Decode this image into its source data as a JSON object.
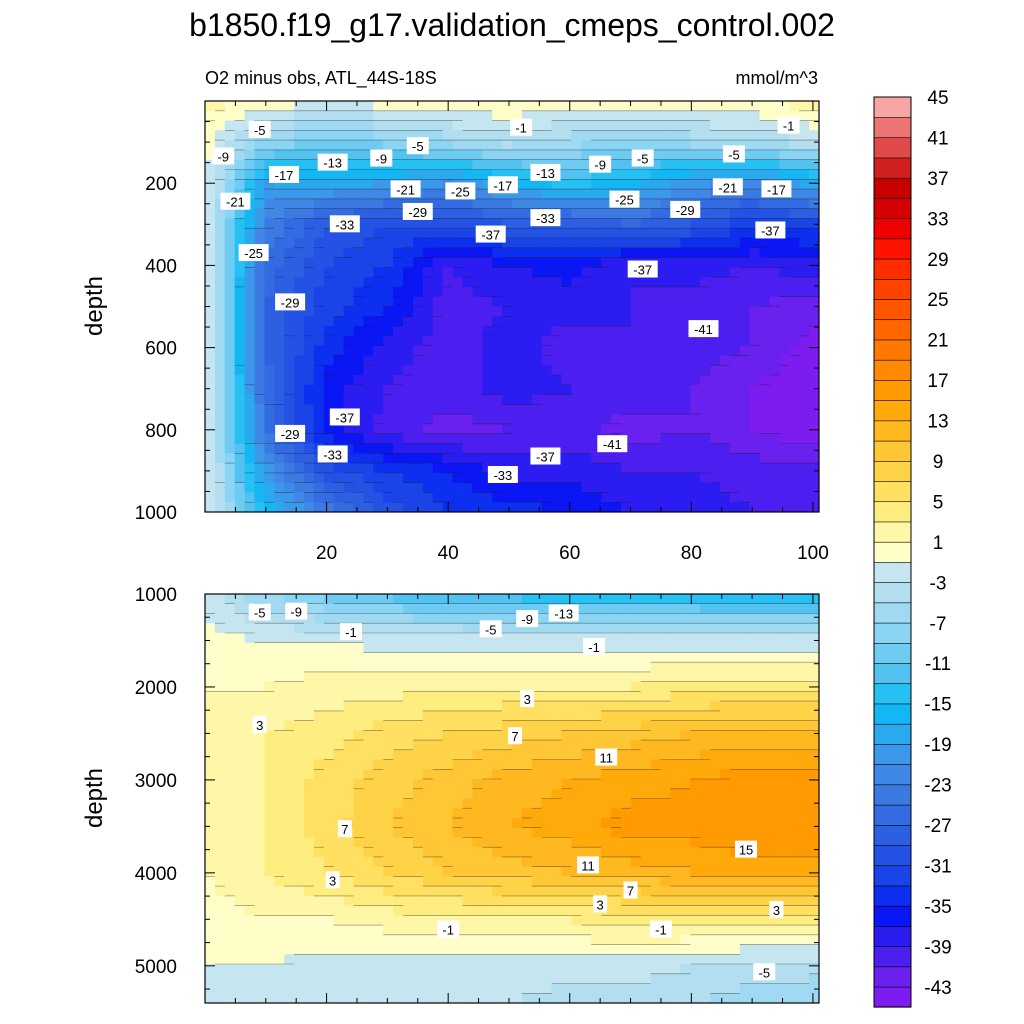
{
  "title": "b1850.f19_g17.validation_cmeps_control.002",
  "subtitle_left": "O2 minus obs, ATL_44S-18S",
  "subtitle_right": "mmol/m^3",
  "colors": {
    "background": "#ffffff",
    "axis": "#000000",
    "contour_line": "#1a1a1a",
    "label_box": "#ffffff"
  },
  "chart_data": [
    {
      "type": "heatmap",
      "panel": "top",
      "x": [
        0,
        10,
        20,
        30,
        40,
        50,
        60,
        70,
        80,
        90,
        100
      ],
      "y": [
        0,
        100,
        200,
        300,
        400,
        500,
        600,
        700,
        800,
        900,
        1000
      ],
      "values": [
        [
          2,
          0,
          0,
          0,
          1,
          1,
          0,
          0,
          1,
          1,
          2
        ],
        [
          0,
          -7,
          -10,
          -8,
          -6,
          -4,
          -6,
          -8,
          -6,
          -5,
          -3
        ],
        [
          0,
          -19,
          -18,
          -19,
          -21,
          -17,
          -14,
          -16,
          -20,
          -22,
          -18
        ],
        [
          0,
          -23,
          -29,
          -31,
          -31,
          -29,
          -29,
          -27,
          -29,
          -33,
          -32
        ],
        [
          0,
          -26,
          -31,
          -33,
          -39,
          -37,
          -36,
          -39,
          -38,
          -39,
          -38
        ],
        [
          0,
          -27,
          -32,
          -35,
          -40,
          -39,
          -38,
          -39,
          -40,
          -41,
          -42
        ],
        [
          0,
          -27,
          -34,
          -38,
          -40,
          -38,
          -40,
          -39,
          -40,
          -41,
          -44
        ],
        [
          0,
          -26,
          -36,
          -39,
          -40,
          -38,
          -39,
          -40,
          -41,
          -43,
          -45
        ],
        [
          0,
          -25,
          -36,
          -40,
          -42,
          -41,
          -40,
          -42,
          -41,
          -43,
          -45
        ],
        [
          0,
          -20,
          -30,
          -33,
          -35,
          -38,
          -38,
          -39,
          -39,
          -40,
          -40
        ],
        [
          0,
          -16,
          -24,
          -30,
          -33,
          -34,
          -35,
          -37,
          -38,
          -39,
          -39
        ]
      ],
      "xlim": [
        0,
        101
      ],
      "ylim": [
        1000,
        0
      ],
      "x_ticks": [
        "20",
        "40",
        "60",
        "80",
        "100"
      ],
      "y_ticks": [
        "200",
        "400",
        "600",
        "800",
        "1000"
      ],
      "xlabel": "",
      "ylabel": "depth",
      "contour_labels": [
        {
          "text": "-5",
          "x": 9,
          "y": 70
        },
        {
          "text": "-1",
          "x": 52,
          "y": 65
        },
        {
          "text": "-1",
          "x": 96,
          "y": 60
        },
        {
          "text": "-9",
          "x": 3,
          "y": 135
        },
        {
          "text": "-5",
          "x": 35,
          "y": 110
        },
        {
          "text": "-9",
          "x": 29,
          "y": 140
        },
        {
          "text": "-13",
          "x": 21,
          "y": 150
        },
        {
          "text": "-17",
          "x": 13,
          "y": 180
        },
        {
          "text": "-13",
          "x": 56,
          "y": 175
        },
        {
          "text": "-9",
          "x": 65,
          "y": 155
        },
        {
          "text": "-5",
          "x": 72,
          "y": 140
        },
        {
          "text": "-5",
          "x": 87,
          "y": 130
        },
        {
          "text": "-21",
          "x": 33,
          "y": 215
        },
        {
          "text": "-25",
          "x": 42,
          "y": 220
        },
        {
          "text": "-17",
          "x": 49,
          "y": 205
        },
        {
          "text": "-21",
          "x": 86,
          "y": 210
        },
        {
          "text": "-17",
          "x": 94,
          "y": 215
        },
        {
          "text": "-25",
          "x": 69,
          "y": 240
        },
        {
          "text": "-29",
          "x": 79,
          "y": 265
        },
        {
          "text": "-21",
          "x": 5,
          "y": 245
        },
        {
          "text": "-29",
          "x": 35,
          "y": 270
        },
        {
          "text": "-33",
          "x": 23,
          "y": 300
        },
        {
          "text": "-37",
          "x": 47,
          "y": 325
        },
        {
          "text": "-33",
          "x": 56,
          "y": 285
        },
        {
          "text": "-37",
          "x": 93,
          "y": 315
        },
        {
          "text": "-37",
          "x": 72,
          "y": 410
        },
        {
          "text": "-25",
          "x": 8,
          "y": 370
        },
        {
          "text": "-29",
          "x": 14,
          "y": 490
        },
        {
          "text": "-41",
          "x": 82,
          "y": 555
        },
        {
          "text": "-37",
          "x": 23,
          "y": 770
        },
        {
          "text": "-29",
          "x": 14,
          "y": 810
        },
        {
          "text": "-33",
          "x": 21,
          "y": 860
        },
        {
          "text": "-37",
          "x": 56,
          "y": 865
        },
        {
          "text": "-41",
          "x": 67,
          "y": 835
        },
        {
          "text": "-33",
          "x": 49,
          "y": 910
        }
      ]
    },
    {
      "type": "heatmap",
      "panel": "bottom",
      "x": [
        0,
        10,
        20,
        30,
        40,
        50,
        60,
        70,
        80,
        90,
        100
      ],
      "y": [
        1000,
        1500,
        2000,
        2500,
        3000,
        3500,
        4000,
        4500,
        5000,
        5400
      ],
      "values": [
        [
          -2,
          -7,
          -10,
          -12,
          -13,
          -14,
          -15,
          -15,
          -15,
          -16,
          -16
        ],
        [
          0,
          -1,
          -1,
          -2,
          -2,
          -2,
          -2,
          -2,
          -2,
          -2,
          -2
        ],
        [
          1,
          1,
          2,
          2,
          3,
          3,
          3,
          3,
          4,
          4,
          4
        ],
        [
          1,
          3,
          4,
          6,
          7,
          8,
          9,
          10,
          11,
          12,
          12
        ],
        [
          1,
          3,
          6,
          8,
          10,
          12,
          13,
          14,
          15,
          16,
          16
        ],
        [
          1,
          3,
          6,
          9,
          11,
          13,
          14,
          16,
          16,
          17,
          17
        ],
        [
          1,
          3,
          5,
          7,
          9,
          10,
          11,
          12,
          13,
          14,
          14
        ],
        [
          0,
          1,
          1,
          2,
          2,
          3,
          3,
          4,
          4,
          4,
          4
        ],
        [
          -1,
          -1,
          -2,
          -2,
          -2,
          -2,
          -2,
          -2,
          -3,
          -4,
          -4
        ],
        [
          -1,
          -2,
          -2,
          -2,
          -3,
          -3,
          -4,
          -4,
          -5,
          -6,
          -7
        ]
      ],
      "xlim": [
        0,
        101
      ],
      "ylim": [
        5400,
        1000
      ],
      "x_ticks": [
        "20",
        "40",
        "60",
        "80",
        "100"
      ],
      "y_ticks": [
        "1000",
        "2000",
        "3000",
        "4000",
        "5000"
      ],
      "xlabel": "",
      "ylabel": "depth",
      "contour_labels": [
        {
          "text": "-5",
          "x": 9,
          "y": 1200
        },
        {
          "text": "-9",
          "x": 15,
          "y": 1190
        },
        {
          "text": "-1",
          "x": 24,
          "y": 1410
        },
        {
          "text": "-5",
          "x": 47,
          "y": 1380
        },
        {
          "text": "-9",
          "x": 53,
          "y": 1270
        },
        {
          "text": "-13",
          "x": 59,
          "y": 1210
        },
        {
          "text": "-1",
          "x": 64,
          "y": 1570
        },
        {
          "text": "3",
          "x": 9,
          "y": 2410
        },
        {
          "text": "3",
          "x": 53,
          "y": 2130
        },
        {
          "text": "7",
          "x": 51,
          "y": 2530
        },
        {
          "text": "11",
          "x": 66,
          "y": 2760
        },
        {
          "text": "7",
          "x": 23,
          "y": 3530
        },
        {
          "text": "15",
          "x": 89,
          "y": 3750
        },
        {
          "text": "11",
          "x": 63,
          "y": 3920
        },
        {
          "text": "3",
          "x": 21,
          "y": 4080
        },
        {
          "text": "7",
          "x": 70,
          "y": 4190
        },
        {
          "text": "3",
          "x": 65,
          "y": 4340
        },
        {
          "text": "3",
          "x": 94,
          "y": 4400
        },
        {
          "text": "-1",
          "x": 40,
          "y": 4610
        },
        {
          "text": "-1",
          "x": 75,
          "y": 4610
        },
        {
          "text": "-5",
          "x": 92,
          "y": 5070
        }
      ]
    }
  ],
  "colorbar": {
    "labels": [
      "45",
      "41",
      "37",
      "33",
      "29",
      "25",
      "21",
      "17",
      "13",
      "9",
      "5",
      "1",
      "-3",
      "-7",
      "-11",
      "-15",
      "-19",
      "-23",
      "-27",
      "-31",
      "-35",
      "-39",
      "-43"
    ],
    "levels": [
      -45,
      -43,
      -41,
      -39,
      -37,
      -35,
      -33,
      -31,
      -29,
      -27,
      -25,
      -23,
      -21,
      -19,
      -17,
      -15,
      -13,
      -11,
      -9,
      -7,
      -5,
      -3,
      -1,
      1,
      3,
      5,
      7,
      9,
      11,
      13,
      15,
      17,
      19,
      21,
      23,
      25,
      27,
      29,
      31,
      33,
      35,
      37,
      39,
      41,
      43,
      45
    ],
    "colors_bottom_to_top": [
      "#7c1cf0",
      "#6a20ee",
      "#4c1ff0",
      "#2b1df2",
      "#0a16f4",
      "#0c2ff0",
      "#1a44e8",
      "#2452e4",
      "#2c5fe2",
      "#336ce2",
      "#3b7ae3",
      "#3f88e5",
      "#3c98ea",
      "#2aa9ef",
      "#13b7f3",
      "#26c0f3",
      "#52c3f1",
      "#6ecbf2",
      "#8ad4f4",
      "#a0d9f2",
      "#b3def0",
      "#c5e6f0",
      "#fffdc8",
      "#fff7a8",
      "#ffed80",
      "#ffe060",
      "#ffd348",
      "#ffc735",
      "#ffb820",
      "#ffaa0a",
      "#ff9a00",
      "#ff8a00",
      "#ff7800",
      "#ff6600",
      "#ff5400",
      "#ff4200",
      "#ff2c00",
      "#ff1200",
      "#ee0000",
      "#d60000",
      "#c80000",
      "#d02020",
      "#e04a4a",
      "#ee7474",
      "#f7a6a6"
    ]
  }
}
